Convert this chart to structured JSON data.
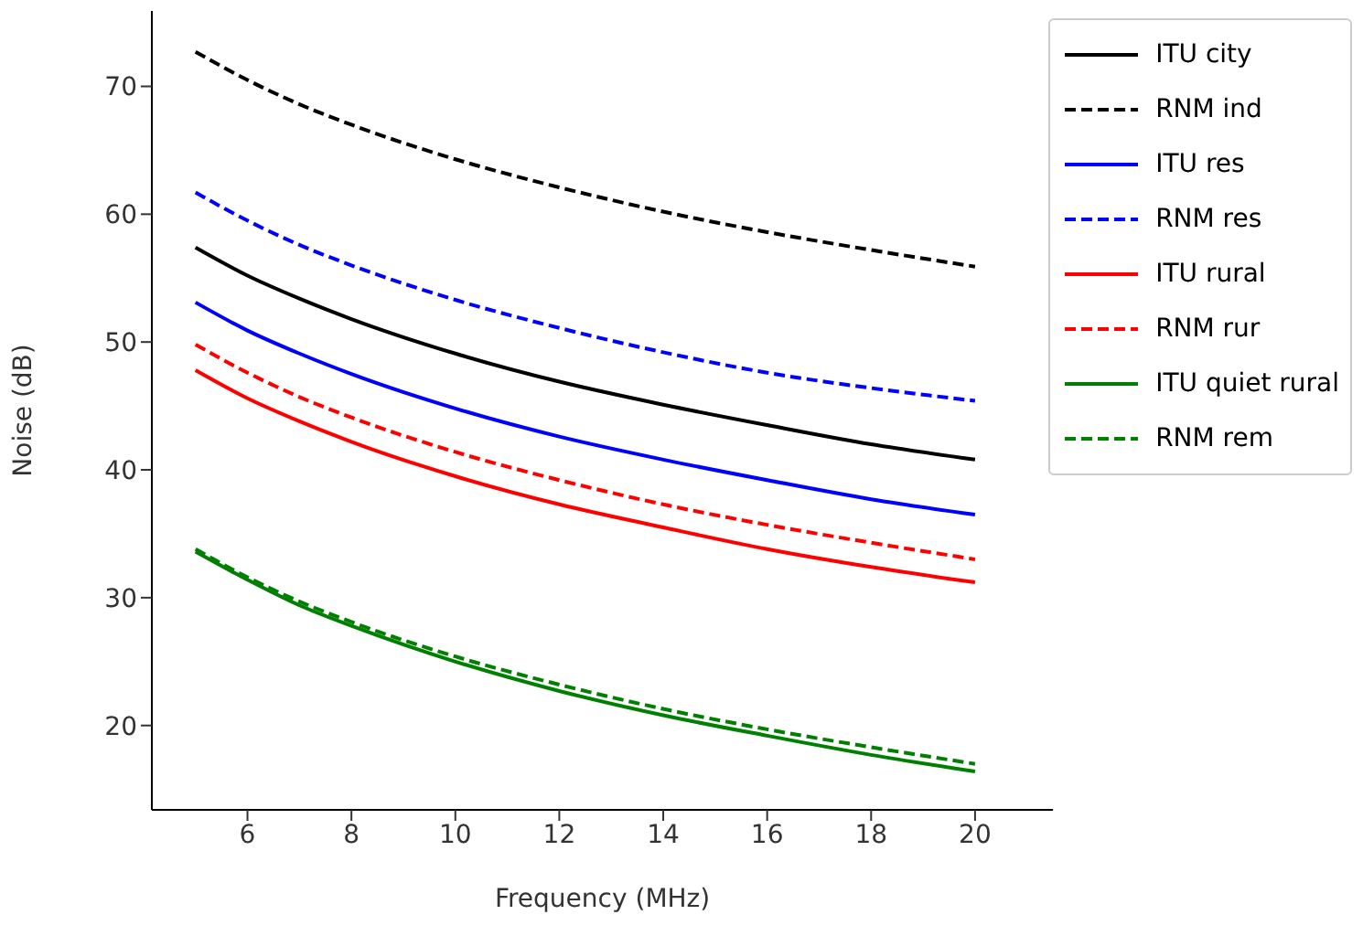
{
  "chart_data": {
    "type": "line",
    "xlabel": "Frequency (MHz)",
    "ylabel": "Noise (dB)",
    "x": [
      5,
      6,
      7,
      8,
      10,
      12,
      14,
      16,
      18,
      20
    ],
    "xlim": [
      4.16,
      21.5
    ],
    "xticks": [
      6,
      8,
      10,
      12,
      14,
      16,
      18,
      20
    ],
    "ylim": [
      13.4,
      75.9
    ],
    "yticks": [
      20,
      30,
      40,
      50,
      60,
      70
    ],
    "grid": false,
    "legend": "top right",
    "marker": "none",
    "series": [
      {
        "name": "ITU city",
        "color": "#000000",
        "line_style": "solid",
        "values": [
          57.4,
          55.2,
          53.4,
          51.8,
          49.1,
          46.9,
          45.1,
          43.5,
          42.0,
          40.8
        ]
      },
      {
        "name": "RNM ind",
        "color": "#000000",
        "line_style": "dashed",
        "values": [
          72.7,
          70.5,
          68.6,
          67.0,
          64.3,
          62.1,
          60.2,
          58.6,
          57.2,
          55.9
        ]
      },
      {
        "name": "ITU res",
        "color": "#0000ff",
        "line_style": "solid",
        "values": [
          53.1,
          50.9,
          49.1,
          47.5,
          44.8,
          42.6,
          40.8,
          39.2,
          37.7,
          36.5
        ]
      },
      {
        "name": "RNM res",
        "color": "#0000ff",
        "line_style": "dashed",
        "values": [
          61.7,
          59.5,
          57.6,
          56.0,
          53.3,
          51.1,
          49.2,
          47.6,
          46.4,
          45.4
        ]
      },
      {
        "name": "ITU rural",
        "color": "#ff0000",
        "line_style": "solid",
        "values": [
          47.8,
          45.6,
          43.8,
          42.2,
          39.5,
          37.3,
          35.5,
          33.8,
          32.4,
          31.2
        ]
      },
      {
        "name": "RNM rur",
        "color": "#ff0000",
        "line_style": "dashed",
        "values": [
          49.8,
          47.6,
          45.7,
          44.1,
          41.4,
          39.2,
          37.3,
          35.7,
          34.3,
          33.0
        ]
      },
      {
        "name": "ITU quiet rural",
        "color": "#008000",
        "line_style": "solid",
        "values": [
          33.6,
          31.4,
          29.4,
          27.8,
          25.0,
          22.7,
          20.8,
          19.2,
          17.7,
          16.4
        ]
      },
      {
        "name": "RNM rem",
        "color": "#008000",
        "line_style": "dashed",
        "values": [
          33.8,
          31.6,
          29.7,
          28.1,
          25.4,
          23.2,
          21.3,
          19.7,
          18.3,
          17.0
        ]
      }
    ]
  }
}
